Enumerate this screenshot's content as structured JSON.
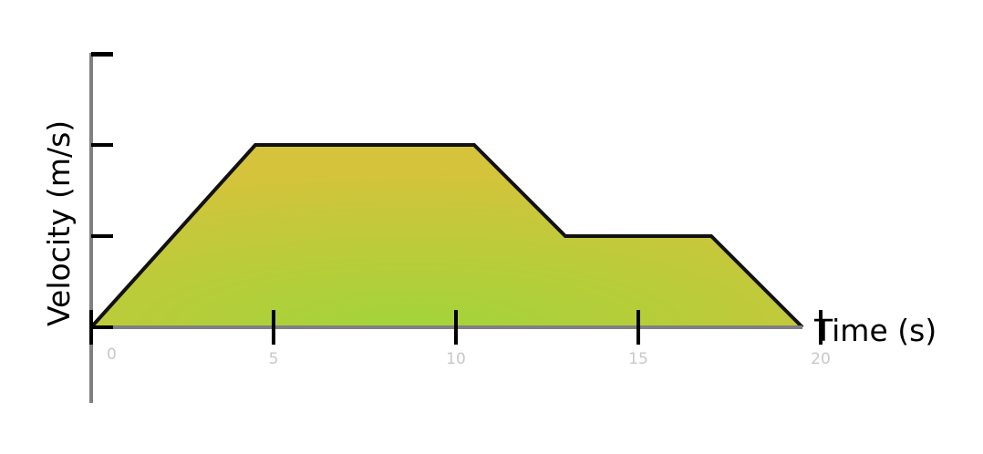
{
  "chart_data": {
    "type": "area",
    "title": "",
    "xlabel": "Time (s)",
    "ylabel": "Velocity (m/s)",
    "x_ticks": [
      "0",
      "5",
      "10",
      "15",
      "20"
    ],
    "xlim": [
      0,
      20
    ],
    "y_tick_count": 4,
    "series": [
      {
        "x": [
          0,
          4.5,
          10.5,
          13,
          17,
          19.5
        ],
        "y": [
          0,
          2,
          2,
          1,
          1,
          0
        ]
      }
    ],
    "colors": {
      "fill_center": "#a2d43a",
      "fill_edge": "#d4c33b",
      "outline": "#111111",
      "axis": "#808080",
      "tick": "#000000"
    },
    "grid": false
  }
}
